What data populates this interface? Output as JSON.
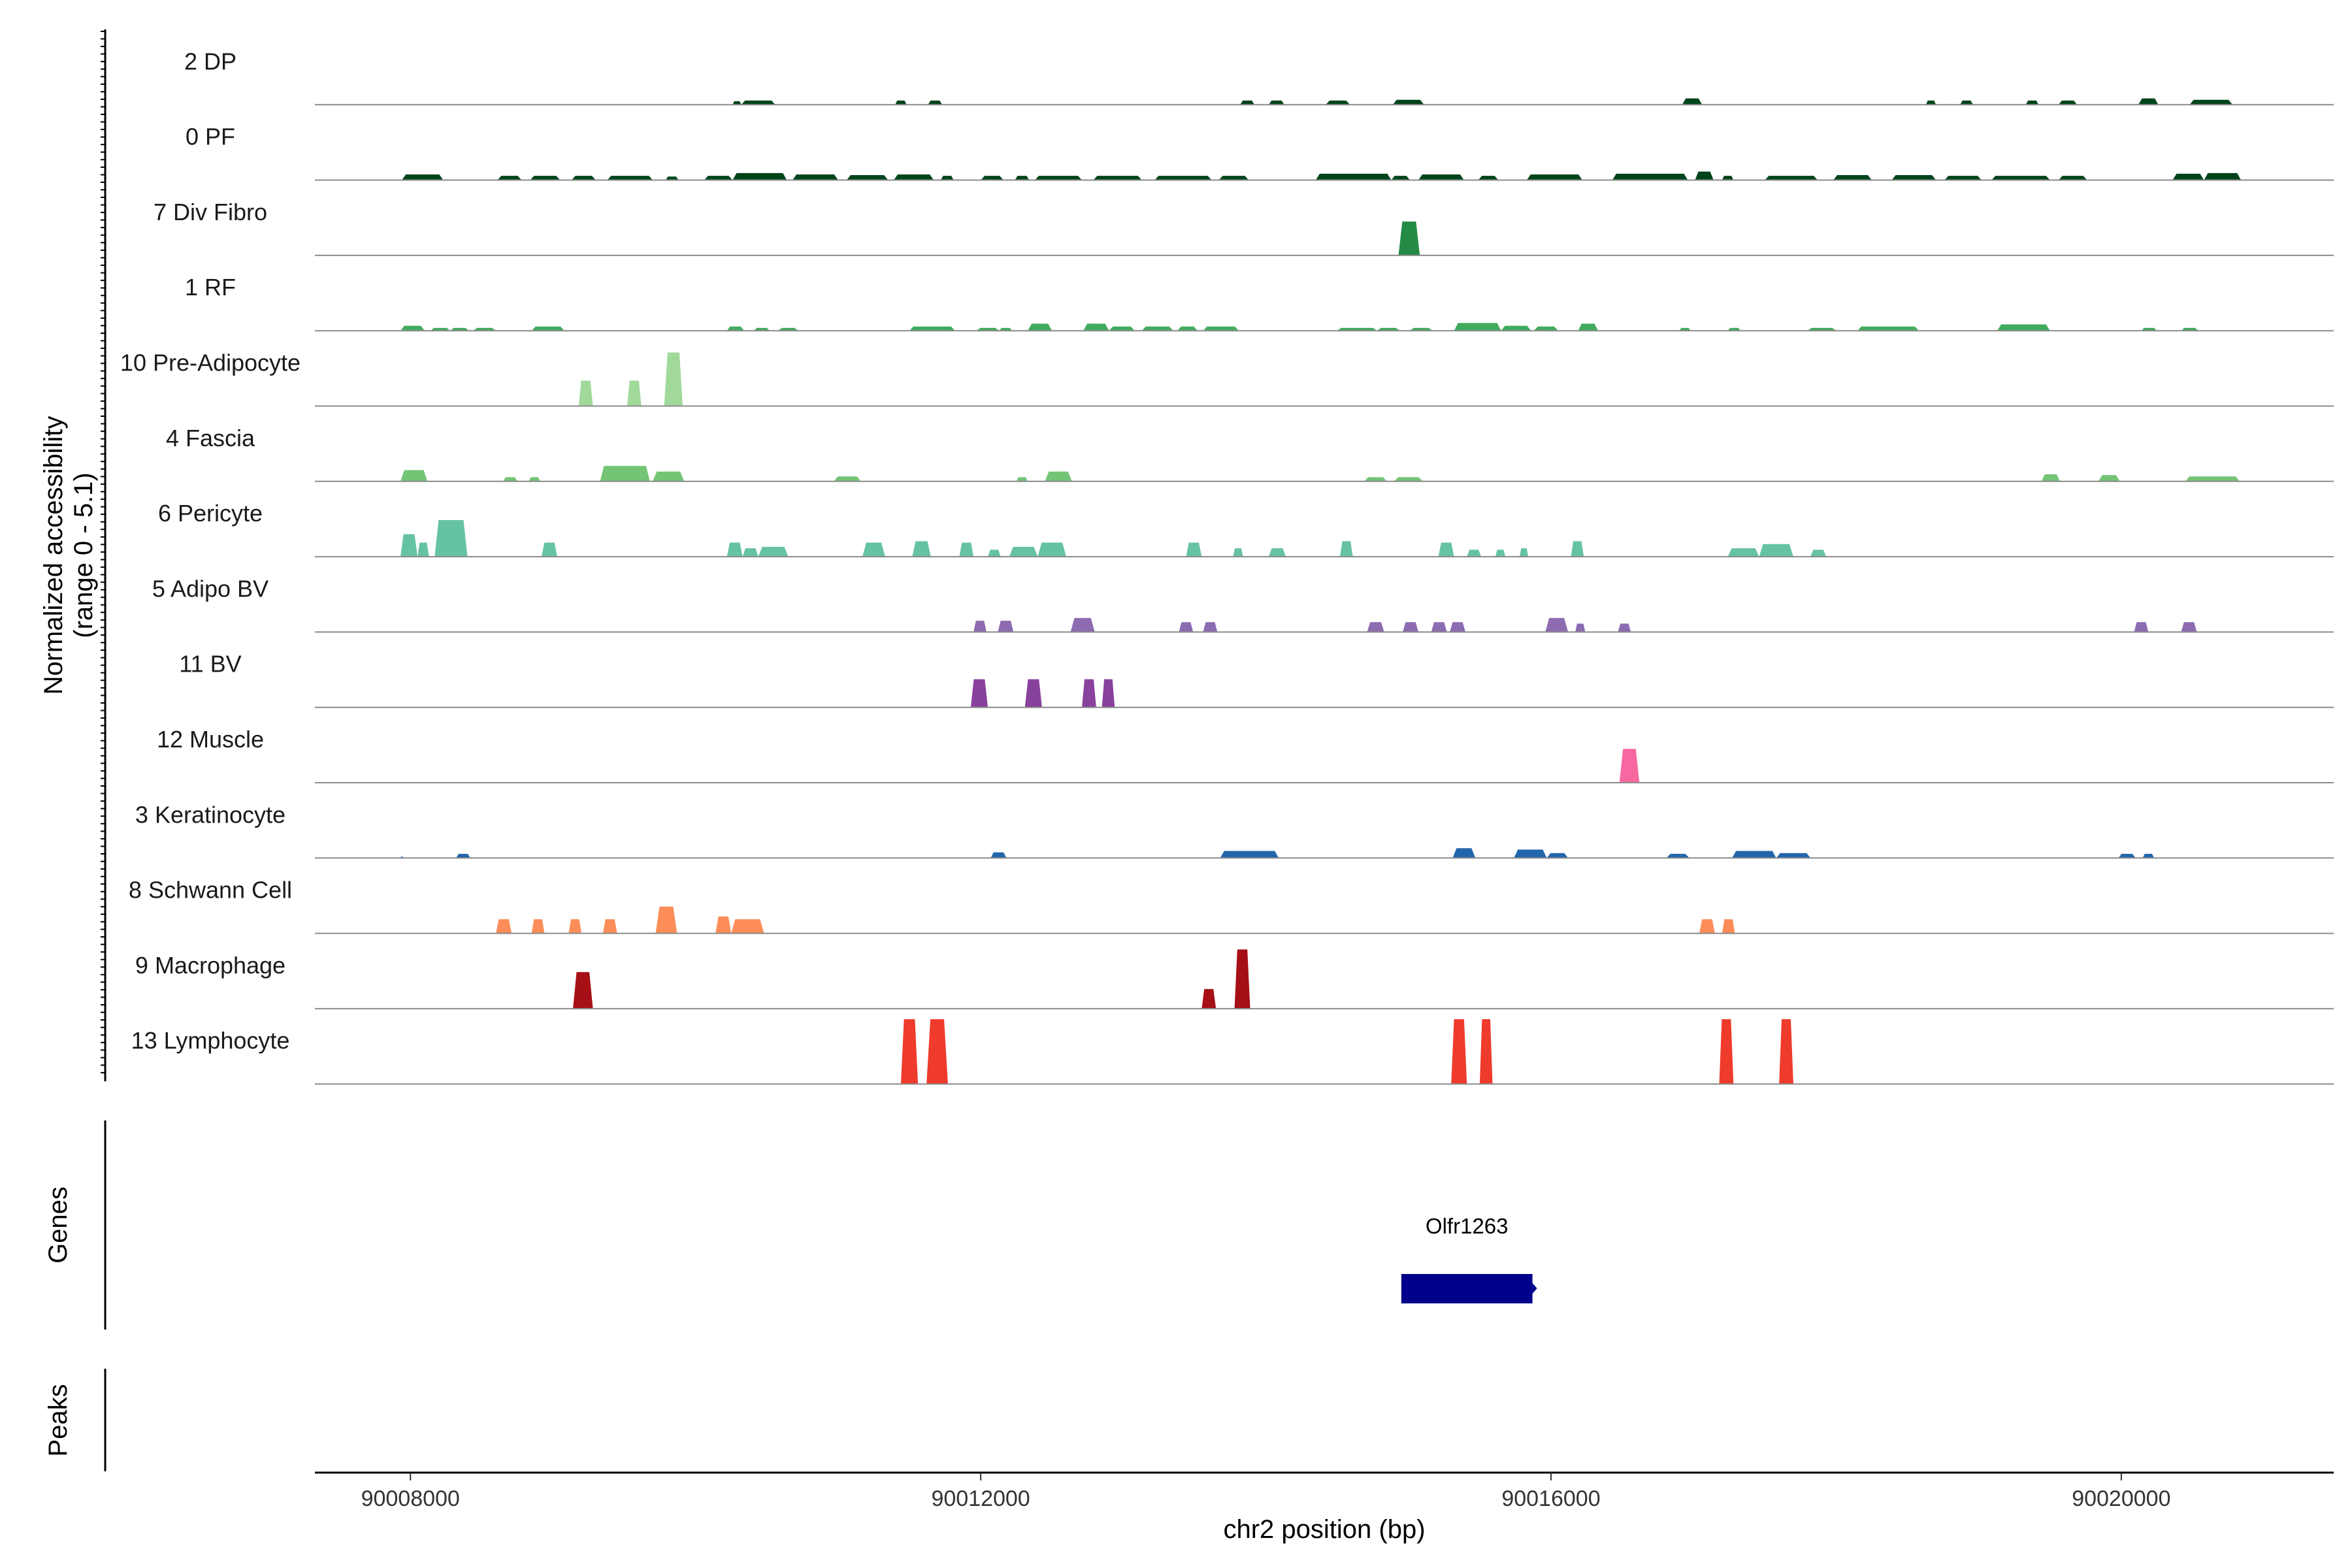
{
  "chart_data": {
    "type": "area",
    "subtype": "genome-browser-coverage",
    "ylabel": "Normalized accessibility\n(range 0 - 5.1)",
    "xlabel": "chr2 position (bp)",
    "xlim": [
      90007330,
      90021490
    ],
    "xticks": [
      "90008000",
      "90012000",
      "90016000",
      "90020000"
    ],
    "xtick_values": [
      90008000,
      90012000,
      90016000,
      90020000
    ],
    "ylim": [
      0,
      5.1
    ],
    "tracks": [
      {
        "name": "2 DP",
        "color": "#00441b",
        "peaks": [
          [
            90010260,
            90010320,
            0.25
          ],
          [
            90010320,
            90010560,
            0.3
          ],
          [
            90011400,
            90011480,
            0.3
          ],
          [
            90011630,
            90011730,
            0.3
          ],
          [
            90013820,
            90013920,
            0.3
          ],
          [
            90014020,
            90014130,
            0.3
          ],
          [
            90014420,
            90014590,
            0.3
          ],
          [
            90014890,
            90015110,
            0.35
          ],
          [
            90016920,
            90017060,
            0.45
          ],
          [
            90018630,
            90018700,
            0.3
          ],
          [
            90018870,
            90018960,
            0.3
          ],
          [
            90019330,
            90019420,
            0.3
          ],
          [
            90019560,
            90019690,
            0.3
          ],
          [
            90020120,
            90020260,
            0.45
          ],
          [
            90020480,
            90020780,
            0.35
          ]
        ]
      },
      {
        "name": "0 PF",
        "color": "#00441b",
        "peaks": [
          [
            90007940,
            90008230,
            0.4
          ],
          [
            90008610,
            90008780,
            0.3
          ],
          [
            90008840,
            90009050,
            0.3
          ],
          [
            90009130,
            90009300,
            0.3
          ],
          [
            90009380,
            90009700,
            0.3
          ],
          [
            90009790,
            90009880,
            0.25
          ],
          [
            90010060,
            90010260,
            0.3
          ],
          [
            90010260,
            90010640,
            0.5
          ],
          [
            90010680,
            90011000,
            0.4
          ],
          [
            90011060,
            90011350,
            0.35
          ],
          [
            90011390,
            90011670,
            0.4
          ],
          [
            90011720,
            90011810,
            0.3
          ],
          [
            90012000,
            90012160,
            0.3
          ],
          [
            90012240,
            90012340,
            0.3
          ],
          [
            90012380,
            90012710,
            0.3
          ],
          [
            90012790,
            90013130,
            0.3
          ],
          [
            90013220,
            90013620,
            0.3
          ],
          [
            90013670,
            90013880,
            0.3
          ],
          [
            90014350,
            90014880,
            0.45
          ],
          [
            90014880,
            90015010,
            0.3
          ],
          [
            90015070,
            90015390,
            0.4
          ],
          [
            90015490,
            90015630,
            0.3
          ],
          [
            90015830,
            90016220,
            0.4
          ],
          [
            90016430,
            90016960,
            0.45
          ],
          [
            90017010,
            90017140,
            0.6
          ],
          [
            90017200,
            90017280,
            0.3
          ],
          [
            90017500,
            90017870,
            0.3
          ],
          [
            90017980,
            90018250,
            0.35
          ],
          [
            90018390,
            90018700,
            0.35
          ],
          [
            90018760,
            90019020,
            0.3
          ],
          [
            90019090,
            90019500,
            0.3
          ],
          [
            90019560,
            90019760,
            0.3
          ],
          [
            90020360,
            90020580,
            0.45
          ],
          [
            90020580,
            90020840,
            0.5
          ]
        ]
      },
      {
        "name": "7 Div Fibro",
        "color": "#238b45",
        "peaks": [
          [
            90014930,
            90015080,
            2.4
          ]
        ]
      },
      {
        "name": "1 RF",
        "color": "#41ab5d",
        "peaks": [
          [
            90007930,
            90008100,
            0.35
          ],
          [
            90008140,
            90008280,
            0.2
          ],
          [
            90008280,
            90008410,
            0.2
          ],
          [
            90008440,
            90008600,
            0.2
          ],
          [
            90008850,
            90009080,
            0.3
          ],
          [
            90010220,
            90010340,
            0.3
          ],
          [
            90010410,
            90010520,
            0.2
          ],
          [
            90010580,
            90010720,
            0.2
          ],
          [
            90011500,
            90011820,
            0.3
          ],
          [
            90011970,
            90012130,
            0.2
          ],
          [
            90012130,
            90012220,
            0.2
          ],
          [
            90012330,
            90012500,
            0.5
          ],
          [
            90012720,
            90012900,
            0.5
          ],
          [
            90012900,
            90013080,
            0.3
          ],
          [
            90013130,
            90013350,
            0.3
          ],
          [
            90013380,
            90013520,
            0.3
          ],
          [
            90013560,
            90013810,
            0.3
          ],
          [
            90014500,
            90014780,
            0.2
          ],
          [
            90014780,
            90014940,
            0.2
          ],
          [
            90015010,
            90015170,
            0.2
          ],
          [
            90015320,
            90015650,
            0.55
          ],
          [
            90015650,
            90015860,
            0.35
          ],
          [
            90015880,
            90016050,
            0.3
          ],
          [
            90016190,
            90016330,
            0.5
          ],
          [
            90016900,
            90016980,
            0.2
          ],
          [
            90017240,
            90017330,
            0.2
          ],
          [
            90017800,
            90018000,
            0.2
          ],
          [
            90018150,
            90018580,
            0.3
          ],
          [
            90019130,
            90019500,
            0.45
          ],
          [
            90020140,
            90020250,
            0.2
          ],
          [
            90020420,
            90020540,
            0.2
          ]
        ]
      },
      {
        "name": "10 Pre-Adipocyte",
        "color": "#a1d99b",
        "peaks": [
          [
            90009180,
            90009280,
            1.8
          ],
          [
            90009520,
            90009620,
            1.8
          ],
          [
            90009780,
            90009910,
            3.8
          ]
        ]
      },
      {
        "name": "4 Fascia",
        "color": "#74c476",
        "peaks": [
          [
            90007930,
            90008120,
            0.8
          ],
          [
            90008650,
            90008750,
            0.3
          ],
          [
            90008830,
            90008910,
            0.3
          ],
          [
            90009330,
            90009680,
            1.1
          ],
          [
            90009700,
            90009920,
            0.7
          ],
          [
            90010970,
            90011160,
            0.35
          ],
          [
            90012250,
            90012330,
            0.3
          ],
          [
            90012450,
            90012640,
            0.7
          ],
          [
            90014900,
            90015100,
            0.3
          ],
          [
            90014690,
            90014850,
            0.3
          ],
          [
            90019440,
            90019570,
            0.5
          ],
          [
            90019840,
            90019990,
            0.45
          ],
          [
            90020450,
            90020830,
            0.35
          ]
        ]
      },
      {
        "name": "6 Pericyte",
        "color": "#66c2a4",
        "peaks": [
          [
            90007930,
            90008050,
            1.6
          ],
          [
            90008050,
            90008130,
            1.0
          ],
          [
            90008170,
            90008400,
            2.6
          ],
          [
            90008920,
            90009030,
            1.0
          ],
          [
            90010220,
            90010330,
            1.0
          ],
          [
            90010330,
            90010440,
            0.6
          ],
          [
            90010440,
            90010650,
            0.7
          ],
          [
            90011170,
            90011330,
            1.0
          ],
          [
            90011520,
            90011650,
            1.1
          ],
          [
            90011850,
            90011950,
            1.0
          ],
          [
            90012050,
            90012140,
            0.5
          ],
          [
            90012200,
            90012400,
            0.7
          ],
          [
            90012400,
            90012600,
            1.0
          ],
          [
            90013440,
            90013550,
            1.0
          ],
          [
            90013770,
            90013840,
            0.6
          ],
          [
            90014020,
            90014140,
            0.6
          ],
          [
            90014520,
            90014610,
            1.1
          ],
          [
            90015210,
            90015320,
            1.0
          ],
          [
            90015410,
            90015510,
            0.5
          ],
          [
            90015610,
            90015680,
            0.5
          ],
          [
            90015780,
            90015840,
            0.6
          ],
          [
            90016140,
            90016230,
            1.1
          ],
          [
            90017240,
            90017460,
            0.6
          ],
          [
            90017460,
            90017700,
            0.9
          ],
          [
            90017820,
            90017930,
            0.5
          ]
        ]
      },
      {
        "name": "5 Adipo BV",
        "color": "#8c6bb1",
        "peaks": [
          [
            90011950,
            90012040,
            0.8
          ],
          [
            90012120,
            90012230,
            0.8
          ],
          [
            90012630,
            90012800,
            1.0
          ],
          [
            90013390,
            90013490,
            0.7
          ],
          [
            90013560,
            90013660,
            0.7
          ],
          [
            90014710,
            90014830,
            0.7
          ],
          [
            90014960,
            90015070,
            0.7
          ],
          [
            90015160,
            90015270,
            0.7
          ],
          [
            90015290,
            90015400,
            0.7
          ],
          [
            90015960,
            90016120,
            1.0
          ],
          [
            90016170,
            90016240,
            0.6
          ],
          [
            90016470,
            90016560,
            0.6
          ],
          [
            90020090,
            90020190,
            0.7
          ],
          [
            90020420,
            90020530,
            0.7
          ]
        ]
      },
      {
        "name": "11 BV",
        "color": "#88419d",
        "peaks": [
          [
            90011930,
            90012050,
            2.0
          ],
          [
            90012310,
            90012430,
            2.0
          ],
          [
            90012710,
            90012810,
            2.0
          ],
          [
            90012850,
            90012940,
            2.0
          ]
        ]
      },
      {
        "name": "12 Muscle",
        "color": "#f768a1",
        "peaks": [
          [
            90016480,
            90016620,
            2.4
          ]
        ]
      },
      {
        "name": "3 Keratinocyte",
        "color": "#2166ac",
        "peaks": [
          [
            90007930,
            90007950,
            0.1
          ],
          [
            90008320,
            90008420,
            0.3
          ],
          [
            90012070,
            90012180,
            0.4
          ],
          [
            90013680,
            90014090,
            0.5
          ],
          [
            90015310,
            90015470,
            0.7
          ],
          [
            90015740,
            90015970,
            0.6
          ],
          [
            90015970,
            90016120,
            0.35
          ],
          [
            90016810,
            90016970,
            0.3
          ],
          [
            90017270,
            90017580,
            0.5
          ],
          [
            90017580,
            90017820,
            0.35
          ],
          [
            90019980,
            90020100,
            0.3
          ],
          [
            90020150,
            90020230,
            0.3
          ]
        ]
      },
      {
        "name": "8 Schwann Cell",
        "color": "#fc8d59",
        "peaks": [
          [
            90008600,
            90008710,
            1.0
          ],
          [
            90008850,
            90008940,
            1.0
          ],
          [
            90009110,
            90009200,
            1.0
          ],
          [
            90009350,
            90009450,
            1.0
          ],
          [
            90009720,
            90009870,
            1.9
          ],
          [
            90010140,
            90010250,
            1.2
          ],
          [
            90010250,
            90010480,
            1.0
          ],
          [
            90017040,
            90017150,
            1.0
          ],
          [
            90017200,
            90017290,
            1.0
          ]
        ]
      },
      {
        "name": "9 Macrophage",
        "color": "#a50f15",
        "peaks": [
          [
            90009140,
            90009280,
            2.6
          ],
          [
            90013550,
            90013650,
            1.4
          ],
          [
            90013780,
            90013890,
            4.2
          ]
        ]
      },
      {
        "name": "13 Lymphocyte",
        "color": "#ef3b2c",
        "peaks": [
          [
            90011440,
            90011560,
            4.6
          ],
          [
            90011620,
            90011770,
            4.6
          ],
          [
            90015300,
            90015410,
            4.6
          ],
          [
            90015500,
            90015590,
            4.6
          ],
          [
            90017180,
            90017280,
            4.6
          ],
          [
            90017600,
            90017700,
            4.6
          ]
        ]
      }
    ],
    "genes_label": "Genes",
    "genes": [
      {
        "name": "Olfr1263",
        "start": 90014950,
        "end": 90015870,
        "color": "#00008b"
      }
    ],
    "peaks_label": "Peaks",
    "peaks_track": []
  }
}
